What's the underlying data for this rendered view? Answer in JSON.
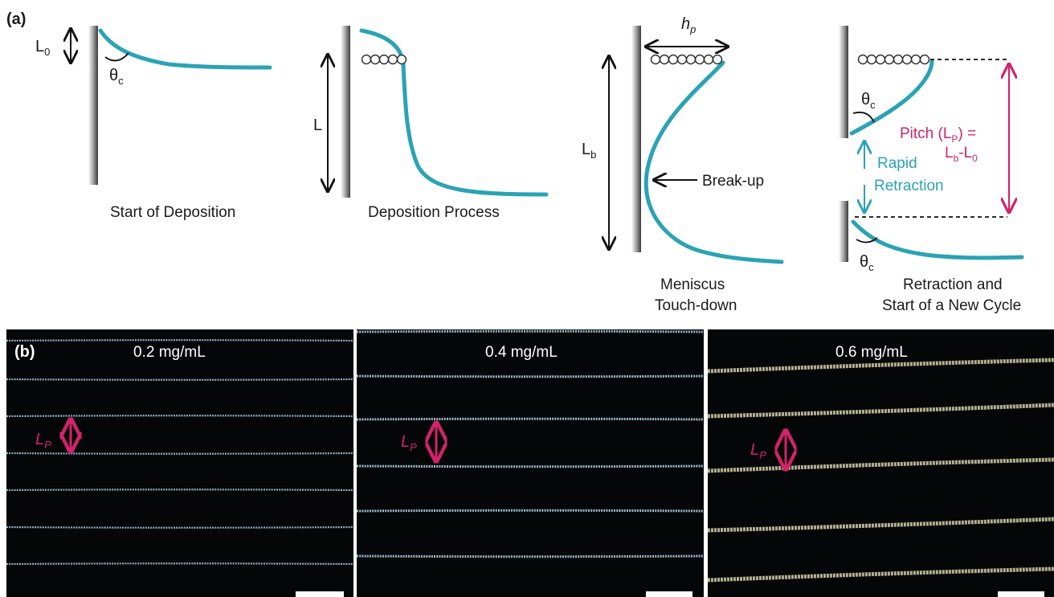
{
  "panel_a": {
    "label": "(a)",
    "stage1": {
      "caption": "Start of Deposition",
      "l0": "L",
      "l0_sub": "0",
      "theta": "θ",
      "theta_sub": "c"
    },
    "stage2": {
      "caption": "Deposition Process",
      "l": "L"
    },
    "stage3": {
      "caption_line1": "Meniscus",
      "caption_line2": "Touch-down",
      "hp": "h",
      "hp_sub": "p",
      "lb": "L",
      "lb_sub": "b",
      "breakup": "Break-up"
    },
    "stage4": {
      "caption_line1": "Retraction and",
      "caption_line2": "Start of a New Cycle",
      "theta": "θ",
      "theta_sub": "c",
      "pitch_line1": "Pitch (L",
      "pitch_line1_sub": "P",
      "pitch_line1_end": ") =",
      "pitch_line2_a": "L",
      "pitch_line2_a_sub": "b",
      "pitch_line2_mid": "-L",
      "pitch_line2_b_sub": "0",
      "rapid": "Rapid",
      "retraction": "Retraction"
    }
  },
  "panel_b": {
    "label": "(b)",
    "images": [
      {
        "concentration": "0.2 mg/mL",
        "lp": "L",
        "lp_sub": "P"
      },
      {
        "concentration": "0.4 mg/mL",
        "lp": "L",
        "lp_sub": "P"
      },
      {
        "concentration": "0.6 mg/mL",
        "lp": "L",
        "lp_sub": "P"
      }
    ]
  },
  "colors": {
    "meniscus": "#2aa3b4",
    "pitch": "#d4226a",
    "background_dark": "#050608"
  }
}
